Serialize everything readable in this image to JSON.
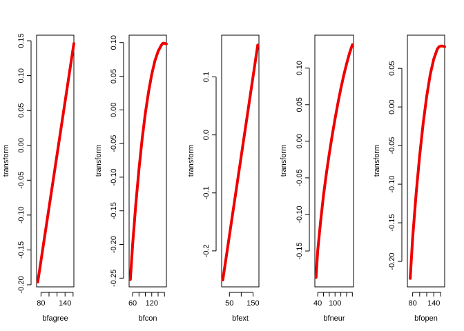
{
  "chart_data": [
    {
      "type": "line",
      "xlabel": "bfagree",
      "ylabel": "transform",
      "xlim": [
        69,
        162
      ],
      "ylim": [
        -0.203,
        0.158
      ],
      "xticks": [
        80,
        100,
        120,
        140,
        160
      ],
      "xtick_labels": [
        "80",
        "",
        "",
        "140",
        ""
      ],
      "yticks": [
        -0.2,
        -0.15,
        -0.1,
        -0.05,
        0.0,
        0.05,
        0.1,
        0.15
      ],
      "ytick_labels": [
        "-0.20",
        "-0.15",
        "-0.10",
        "-0.05",
        "0.00",
        "0.05",
        "0.10",
        "0.15"
      ],
      "color": "#ee0000",
      "x": [
        72,
        162
      ],
      "y": [
        -0.196,
        0.146
      ]
    },
    {
      "type": "line",
      "xlabel": "bfcon",
      "ylabel": "transform",
      "xlim": [
        49,
        166
      ],
      "ylim": [
        -0.263,
        0.111
      ],
      "xticks": [
        60,
        80,
        100,
        120,
        140,
        160
      ],
      "xtick_labels": [
        "60",
        "",
        "",
        "120",
        "",
        ""
      ],
      "yticks": [
        -0.25,
        -0.2,
        -0.15,
        -0.1,
        -0.05,
        0.0,
        0.05,
        0.1
      ],
      "ytick_labels": [
        "-0.25",
        "-0.20",
        "-0.15",
        "-0.10",
        "-0.05",
        "0.00",
        "0.05",
        "0.10"
      ],
      "color": "#ee0000",
      "x": [
        53,
        60,
        70,
        80,
        90,
        100,
        110,
        120,
        130,
        140,
        150,
        155,
        160,
        166
      ],
      "y": [
        -0.252,
        -0.2,
        -0.14,
        -0.088,
        -0.043,
        -0.005,
        0.027,
        0.053,
        0.073,
        0.087,
        0.096,
        0.099,
        0.099,
        0.098
      ]
    },
    {
      "type": "line",
      "xlabel": "bfext",
      "ylabel": "transform",
      "xlim": [
        17,
        175
      ],
      "ylim": [
        -0.262,
        0.172
      ],
      "xticks": [
        50,
        100,
        150
      ],
      "xtick_labels": [
        "50",
        "",
        "150"
      ],
      "yticks": [
        -0.2,
        -0.1,
        0.0,
        0.1
      ],
      "ytick_labels": [
        "-0.2",
        "-0.1",
        "0.0",
        "0.1"
      ],
      "color": "#ee0000",
      "x": [
        22,
        170
      ],
      "y": [
        -0.25,
        0.155
      ]
    },
    {
      "type": "line",
      "xlabel": "bfneur",
      "ylabel": "transform",
      "xlim": [
        30,
        164
      ],
      "ylim": [
        -0.199,
        0.145
      ],
      "xticks": [
        40,
        60,
        80,
        100,
        120,
        140,
        160
      ],
      "xtick_labels": [
        "40",
        "",
        "",
        "100",
        "",
        "",
        ""
      ],
      "yticks": [
        -0.15,
        -0.1,
        -0.05,
        0.0,
        0.05,
        0.1
      ],
      "ytick_labels": [
        "-0.15",
        "-0.10",
        "-0.05",
        "0.00",
        "0.05",
        "0.10"
      ],
      "color": "#ee0000",
      "x": [
        34,
        40,
        50,
        60,
        70,
        80,
        90,
        100,
        110,
        120,
        130,
        140,
        150,
        160
      ],
      "y": [
        -0.186,
        -0.149,
        -0.109,
        -0.074,
        -0.044,
        -0.017,
        0.008,
        0.031,
        0.052,
        0.072,
        0.09,
        0.106,
        0.12,
        0.132
      ]
    },
    {
      "type": "line",
      "xlabel": "bfopen",
      "ylabel": "transform",
      "xlim": [
        65,
        171
      ],
      "ylim": [
        -0.233,
        0.093
      ],
      "xticks": [
        80,
        100,
        120,
        140,
        160
      ],
      "xtick_labels": [
        "80",
        "",
        "",
        "140",
        ""
      ],
      "yticks": [
        -0.2,
        -0.15,
        -0.1,
        -0.05,
        0.0,
        0.05
      ],
      "ytick_labels": [
        "-0.20",
        "-0.15",
        "-0.10",
        "-0.05",
        "0.00",
        "0.05"
      ],
      "color": "#ee0000",
      "x": [
        73,
        80,
        90,
        100,
        110,
        120,
        130,
        140,
        150,
        155,
        160,
        165,
        171
      ],
      "y": [
        -0.222,
        -0.17,
        -0.112,
        -0.063,
        -0.021,
        0.014,
        0.042,
        0.062,
        0.075,
        0.078,
        0.079,
        0.079,
        0.078
      ]
    }
  ]
}
